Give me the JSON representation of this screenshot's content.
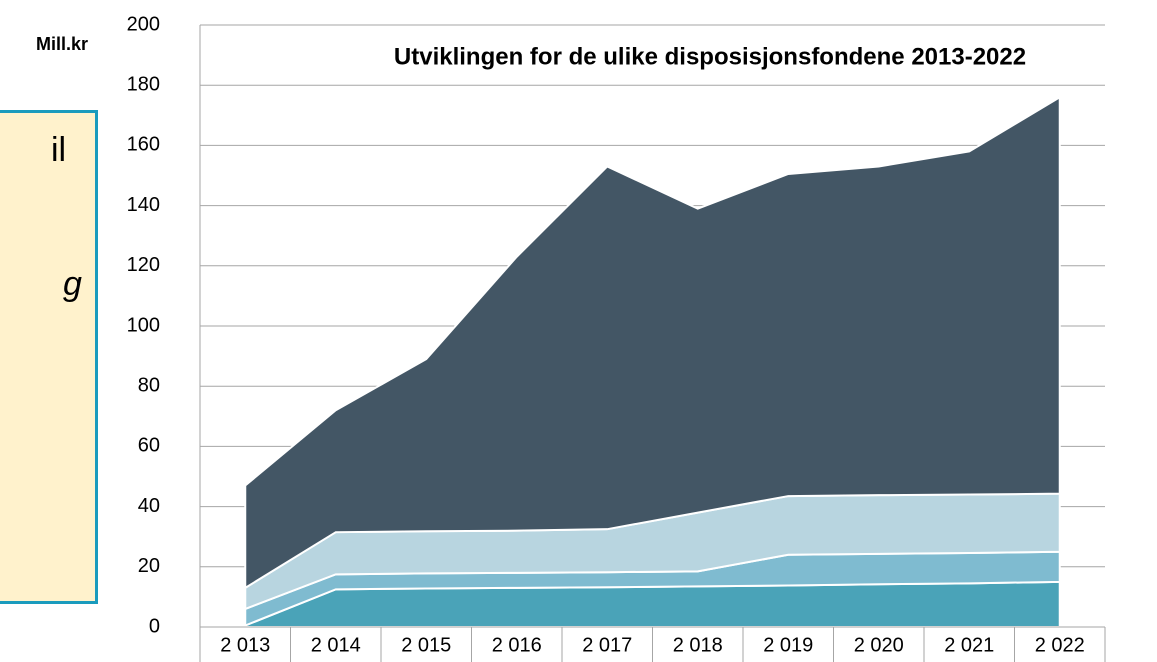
{
  "side_box": {
    "lines": [
      "il",
      "g"
    ]
  },
  "chart_data": {
    "type": "area",
    "stacked": true,
    "title": "Utviklingen for de ulike disposisjonsfondene 2013-2022",
    "y_label": "Mill.kr",
    "categories": [
      "2 013",
      "2 014",
      "2 015",
      "2 016",
      "2 017",
      "2 018",
      "2 019",
      "2 020",
      "2 021",
      "2 022"
    ],
    "series": [
      {
        "color": "#4aa3b8",
        "values": [
          0.5,
          12.5,
          12.8,
          13,
          13.2,
          13.5,
          13.8,
          14.2,
          14.5,
          15
        ]
      },
      {
        "color": "#7fbbd0",
        "values": [
          5.5,
          5,
          5,
          5,
          5,
          5,
          10.2,
          10.1,
          10.1,
          10
        ]
      },
      {
        "color": "#b8d5e0",
        "values": [
          7,
          14,
          14,
          14,
          14.3,
          19.5,
          19.5,
          19.5,
          19.4,
          19.3
        ]
      },
      {
        "color": "#435665",
        "values": [
          34,
          40.5,
          57.2,
          91,
          120.5,
          101,
          107,
          109.2,
          114,
          131.7
        ]
      }
    ],
    "ylim": [
      0,
      200
    ],
    "yticks": [
      0,
      20,
      40,
      60,
      80,
      100,
      120,
      140,
      160,
      180,
      200
    ],
    "grid": true
  }
}
